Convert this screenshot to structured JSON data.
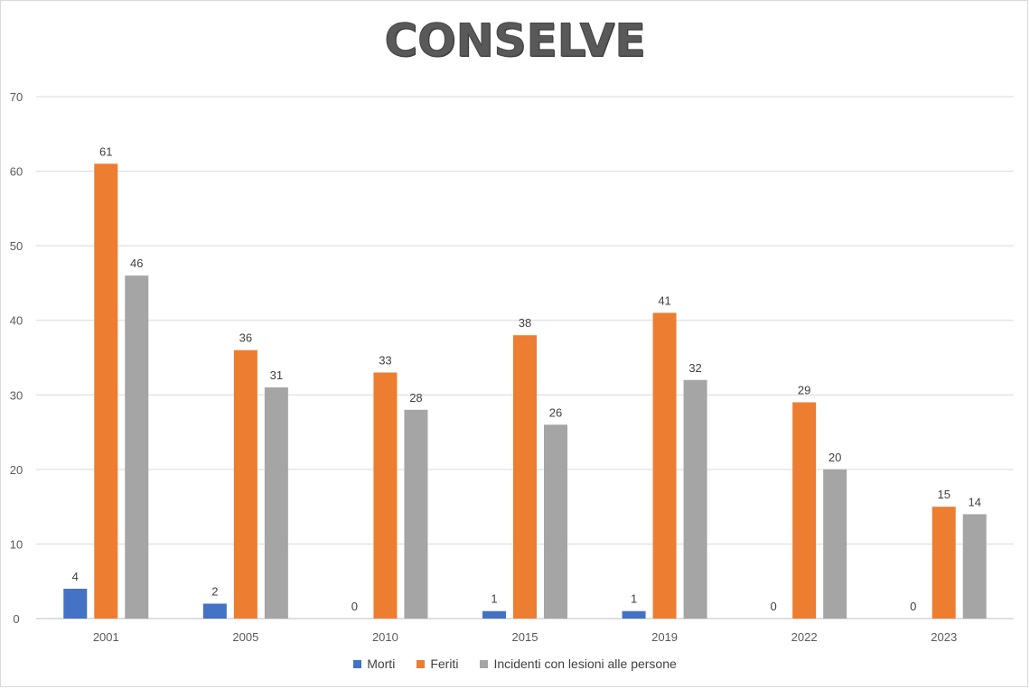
{
  "chart_data": {
    "type": "bar",
    "title": "CONSELVE",
    "categories": [
      "2001",
      "2005",
      "2010",
      "2015",
      "2019",
      "2022",
      "2023"
    ],
    "series": [
      {
        "name": "Morti",
        "color": "#4472c4",
        "values": [
          4,
          2,
          0,
          1,
          1,
          0,
          0
        ]
      },
      {
        "name": "Feriti",
        "color": "#ed7d31",
        "values": [
          61,
          36,
          33,
          38,
          41,
          29,
          15
        ]
      },
      {
        "name": "Incidenti con lesioni alle persone",
        "color": "#a5a5a5",
        "values": [
          46,
          31,
          28,
          26,
          32,
          20,
          14
        ]
      }
    ],
    "ylim": [
      0,
      70
    ],
    "yticks": [
      0,
      10,
      20,
      30,
      40,
      50,
      60,
      70
    ],
    "grid": true,
    "legend_position": "bottom",
    "data_labels": true
  }
}
